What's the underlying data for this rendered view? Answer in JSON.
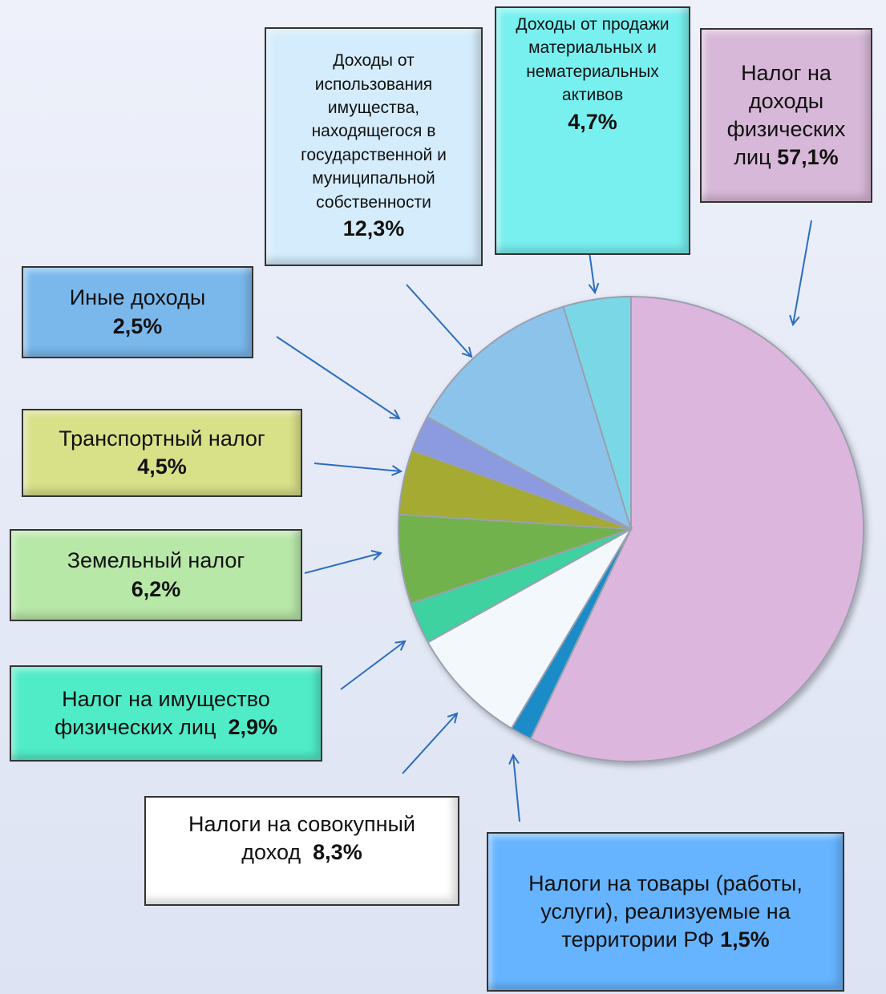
{
  "chart_data": {
    "type": "pie",
    "categories": [
      "Налог на доходы физических лиц",
      "Налоги на товары (работы, услуги), реализуемые на территории РФ",
      "Налоги на совокупный доход",
      "Налог на имущество физических лиц",
      "Земельный налог",
      "Транспортный налог",
      "Иные доходы",
      "Доходы от использования имущества, находящегося в государственной и муниципальной собственности",
      "Доходы от продажи материальных и нематериальных активов"
    ],
    "values": [
      57.1,
      1.5,
      8.3,
      2.9,
      6.2,
      4.5,
      2.5,
      12.3,
      4.7
    ],
    "value_labels": [
      "57,1%",
      "1,5%",
      "8,3%",
      "2,9%",
      "6,2%",
      "4,5%",
      "2,5%",
      "12,3%",
      "4,7%"
    ],
    "colors": [
      "#dcb6dc",
      "#1e8cc8",
      "#f2f8fc",
      "#3cd2a0",
      "#72b24e",
      "#a4aa32",
      "#8c9be0",
      "#8cc3eb",
      "#7ad8e6"
    ]
  }
}
